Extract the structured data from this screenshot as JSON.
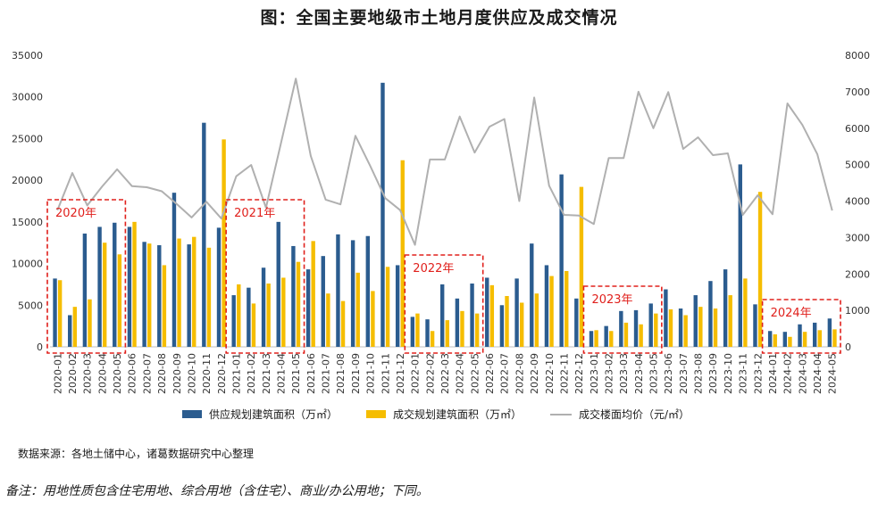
{
  "title": "图：全国主要地级市土地月度供应及成交情况",
  "source": "数据来源：各地土储中心，诸葛数据研究中心整理",
  "remark": "备注：用地性质包含住宅用地、综合用地（含住宅）、商业/办公用地；下同。",
  "colors": {
    "supply": "#2b5c8f",
    "transaction": "#f5bd00",
    "price": "#b0b0b0",
    "highlight": "#e0201c"
  },
  "chart_data": {
    "type": "bar",
    "title": "图：全国主要地级市土地月度供应及成交情况",
    "categories": [
      "2020-01",
      "2020-02",
      "2020-03",
      "2020-04",
      "2020-05",
      "2020-06",
      "2020-07",
      "2020-08",
      "2020-09",
      "2020-10",
      "2020-11",
      "2020-12",
      "2021-01",
      "2021-02",
      "2021-03",
      "2021-04",
      "2021-05",
      "2021-06",
      "2021-07",
      "2021-08",
      "2021-09",
      "2021-10",
      "2021-11",
      "2021-12",
      "2022-01",
      "2022-02",
      "2022-03",
      "2022-04",
      "2022-05",
      "2022-06",
      "2022-07",
      "2022-08",
      "2022-09",
      "2022-10",
      "2022-11",
      "2022-12",
      "2023-01",
      "2023-02",
      "2023-03",
      "2023-04",
      "2023-05",
      "2023-06",
      "2023-07",
      "2023-08",
      "2023-09",
      "2023-10",
      "2023-11",
      "2023-12",
      "2024-01",
      "2024-02",
      "2024-03",
      "2024-04",
      "2024-05"
    ],
    "ylim_left": [
      0,
      35000
    ],
    "ylim_right": [
      0,
      8000
    ],
    "yticks_left": [
      "0",
      "5000",
      "10000",
      "15000",
      "20000",
      "25000",
      "30000",
      "35000"
    ],
    "yticks_right": [
      "0",
      "1000",
      "2000",
      "3000",
      "4000",
      "5000",
      "6000",
      "7000",
      "8000"
    ],
    "series": [
      {
        "name": "供应规划建筑面积（万㎡）",
        "type": "bar",
        "axis": "left",
        "values": [
          8200,
          3800,
          13600,
          14400,
          14900,
          14400,
          12600,
          12200,
          18500,
          12300,
          26900,
          14300,
          6200,
          7100,
          9500,
          15000,
          12100,
          9300,
          10900,
          13500,
          12800,
          13300,
          31700,
          9800,
          3600,
          3300,
          7500,
          5800,
          7600,
          8300,
          5000,
          8200,
          12400,
          9800,
          20700,
          5800,
          1900,
          2500,
          4300,
          4400,
          5200,
          6900,
          4600,
          6200,
          7900,
          9300,
          21900,
          5100,
          1900,
          1800,
          2700,
          2900,
          3400
        ]
      },
      {
        "name": "成交规划建筑面积（万㎡）",
        "type": "bar",
        "axis": "left",
        "values": [
          8000,
          4800,
          5700,
          12500,
          11100,
          15000,
          12400,
          9800,
          13000,
          13200,
          11900,
          24900,
          7500,
          5200,
          7600,
          8300,
          10200,
          12700,
          6400,
          5500,
          8900,
          6700,
          9600,
          22400,
          4000,
          1900,
          3200,
          4300,
          4000,
          7400,
          6100,
          5300,
          6400,
          8500,
          9100,
          19200,
          2000,
          1900,
          2900,
          2700,
          4000,
          4500,
          3800,
          4800,
          4600,
          6200,
          8200,
          18600,
          1500,
          1200,
          1800,
          2000,
          2100
        ]
      },
      {
        "name": "成交楼面均价（元/㎡）",
        "type": "line",
        "axis": "right",
        "values": [
          3750,
          4770,
          3880,
          4400,
          4870,
          4410,
          4380,
          4270,
          3920,
          3550,
          3980,
          3520,
          4680,
          4990,
          3820,
          5580,
          7360,
          5240,
          4040,
          3910,
          5790,
          4960,
          4080,
          3750,
          2800,
          5140,
          5140,
          6320,
          5330,
          6040,
          6250,
          4000,
          6840,
          4420,
          3620,
          3600,
          3370,
          5180,
          5180,
          7000,
          6000,
          6990,
          5430,
          5750,
          5260,
          5310,
          3620,
          4160,
          3640,
          6680,
          6090,
          5290,
          3740
        ]
      }
    ],
    "legend_position": "bottom",
    "annotations": [
      "2020年",
      "2021年",
      "2022年",
      "2023年",
      "2024年"
    ]
  }
}
